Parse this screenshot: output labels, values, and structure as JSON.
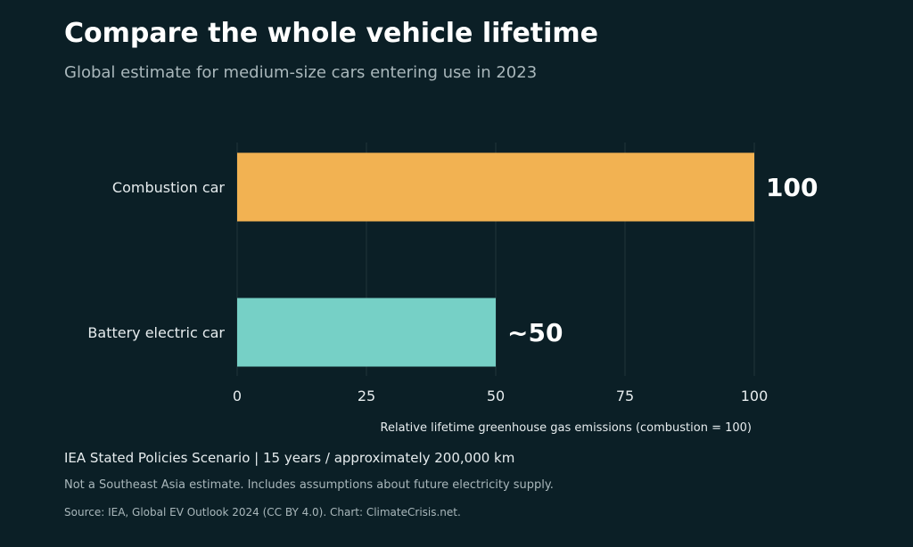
{
  "title": "Compare the whole vehicle lifetime",
  "subtitle": "Global estimate for medium-size cars entering use in 2023",
  "footer": {
    "scenario": "IEA Stated Policies Scenario | 15 years / approximately 200,000 km",
    "note": "Not a Southeast Asia estimate. Includes assumptions about future electricity supply.",
    "source": "Source: IEA, Global EV Outlook 2024 (CC BY 4.0). Chart: ClimateCrisis.net."
  },
  "colors": {
    "background": "#0b1f26",
    "combustion": "#f2b252",
    "battery_electric": "#76d0c6",
    "grid": "#22343a"
  },
  "chart_data": {
    "type": "bar",
    "orientation": "horizontal",
    "categories": [
      "Combustion car",
      "Battery electric car"
    ],
    "values": [
      100,
      50
    ],
    "data_labels": [
      "100",
      "~50"
    ],
    "xlabel": "Relative lifetime greenhouse gas emissions (combustion = 100)",
    "ylabel": "",
    "xlim": [
      0,
      100
    ],
    "xticks": [
      0,
      25,
      50,
      75,
      100
    ],
    "grid": true,
    "bar_colors": [
      "#f2b252",
      "#76d0c6"
    ]
  }
}
